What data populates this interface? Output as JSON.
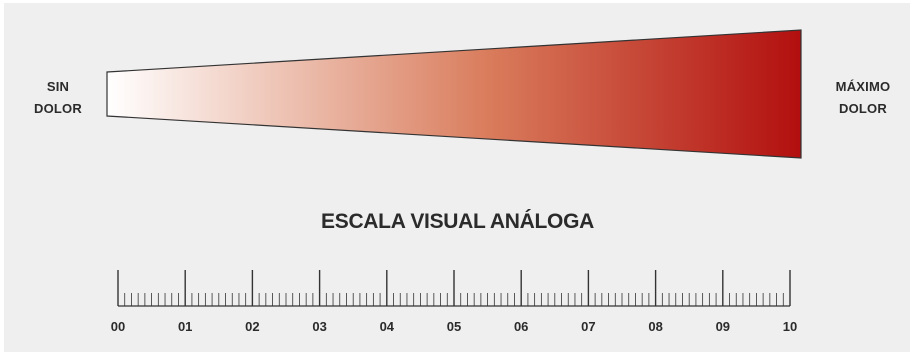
{
  "left_label": [
    "SIN",
    "DOLOR"
  ],
  "right_label": [
    "MÁXIMO",
    "DOLOR"
  ],
  "title": "ESCALA VISUAL ANÁLOGA",
  "gradient": {
    "start_color": "#ffffff",
    "mid_color": "#d97c5c",
    "end_color": "#b20f0f"
  },
  "ruler": {
    "min": 0,
    "max": 10,
    "minor_ticks_per_unit": 10,
    "labels": [
      "00",
      "01",
      "02",
      "03",
      "04",
      "05",
      "06",
      "07",
      "08",
      "09",
      "10"
    ]
  }
}
